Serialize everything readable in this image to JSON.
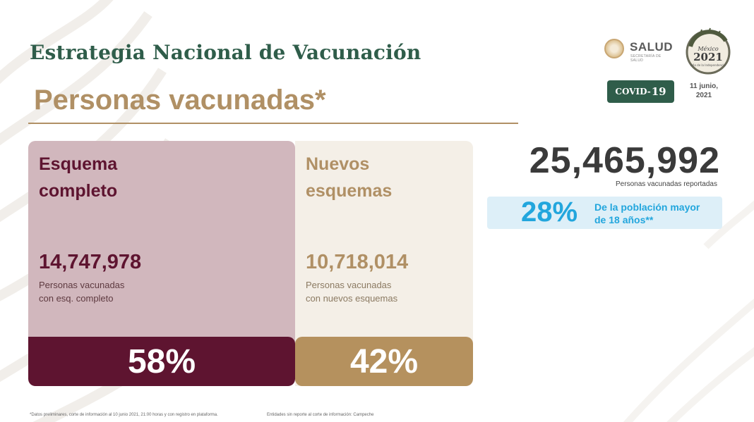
{
  "header": {
    "title": "Estrategia Nacional de Vacunación",
    "subtitle": "Personas vacunadas*"
  },
  "logos": {
    "salud_text": "SALUD",
    "salud_small": "SECRETARÍA DE SALUD",
    "year_top": "México",
    "year": "2021",
    "year_caption": "Año de la Independencia"
  },
  "badge": {
    "covid_text": "COVID-",
    "covid_num": "19"
  },
  "date": {
    "line1": "11 junio,",
    "line2": "2021"
  },
  "cards": {
    "complete": {
      "head_line1": "Esquema",
      "head_line2": "completo",
      "number": "14,747,978",
      "desc_line1": "Personas vacunadas",
      "desc_line2": "con esq. completo",
      "percent": "58%"
    },
    "new": {
      "head_line1": "Nuevos",
      "head_line2": "esquemas",
      "number": "10,718,014",
      "desc_line1": "Personas vacunadas",
      "desc_line2": "con nuevos esquemas",
      "percent": "42%"
    }
  },
  "summary": {
    "total": "25,465,992",
    "total_label": "Personas vacunadas reportadas",
    "percent": "28%",
    "percent_line1": "De la población mayor",
    "percent_line2": "de 18 años**"
  },
  "footnotes": {
    "left": "*Datos preliminares, corte de información al 10 junio 2021, 21:00 horas y con registro en plataforma.",
    "right": "Entidades sin reporte al corte de información: Campeche"
  },
  "colors": {
    "green": "#2f5d4a",
    "gold": "#b09065",
    "maroon": "#5e1430",
    "pink": "#d1b7bd",
    "cream": "#f4efe7",
    "blue": "#22a6dd"
  }
}
